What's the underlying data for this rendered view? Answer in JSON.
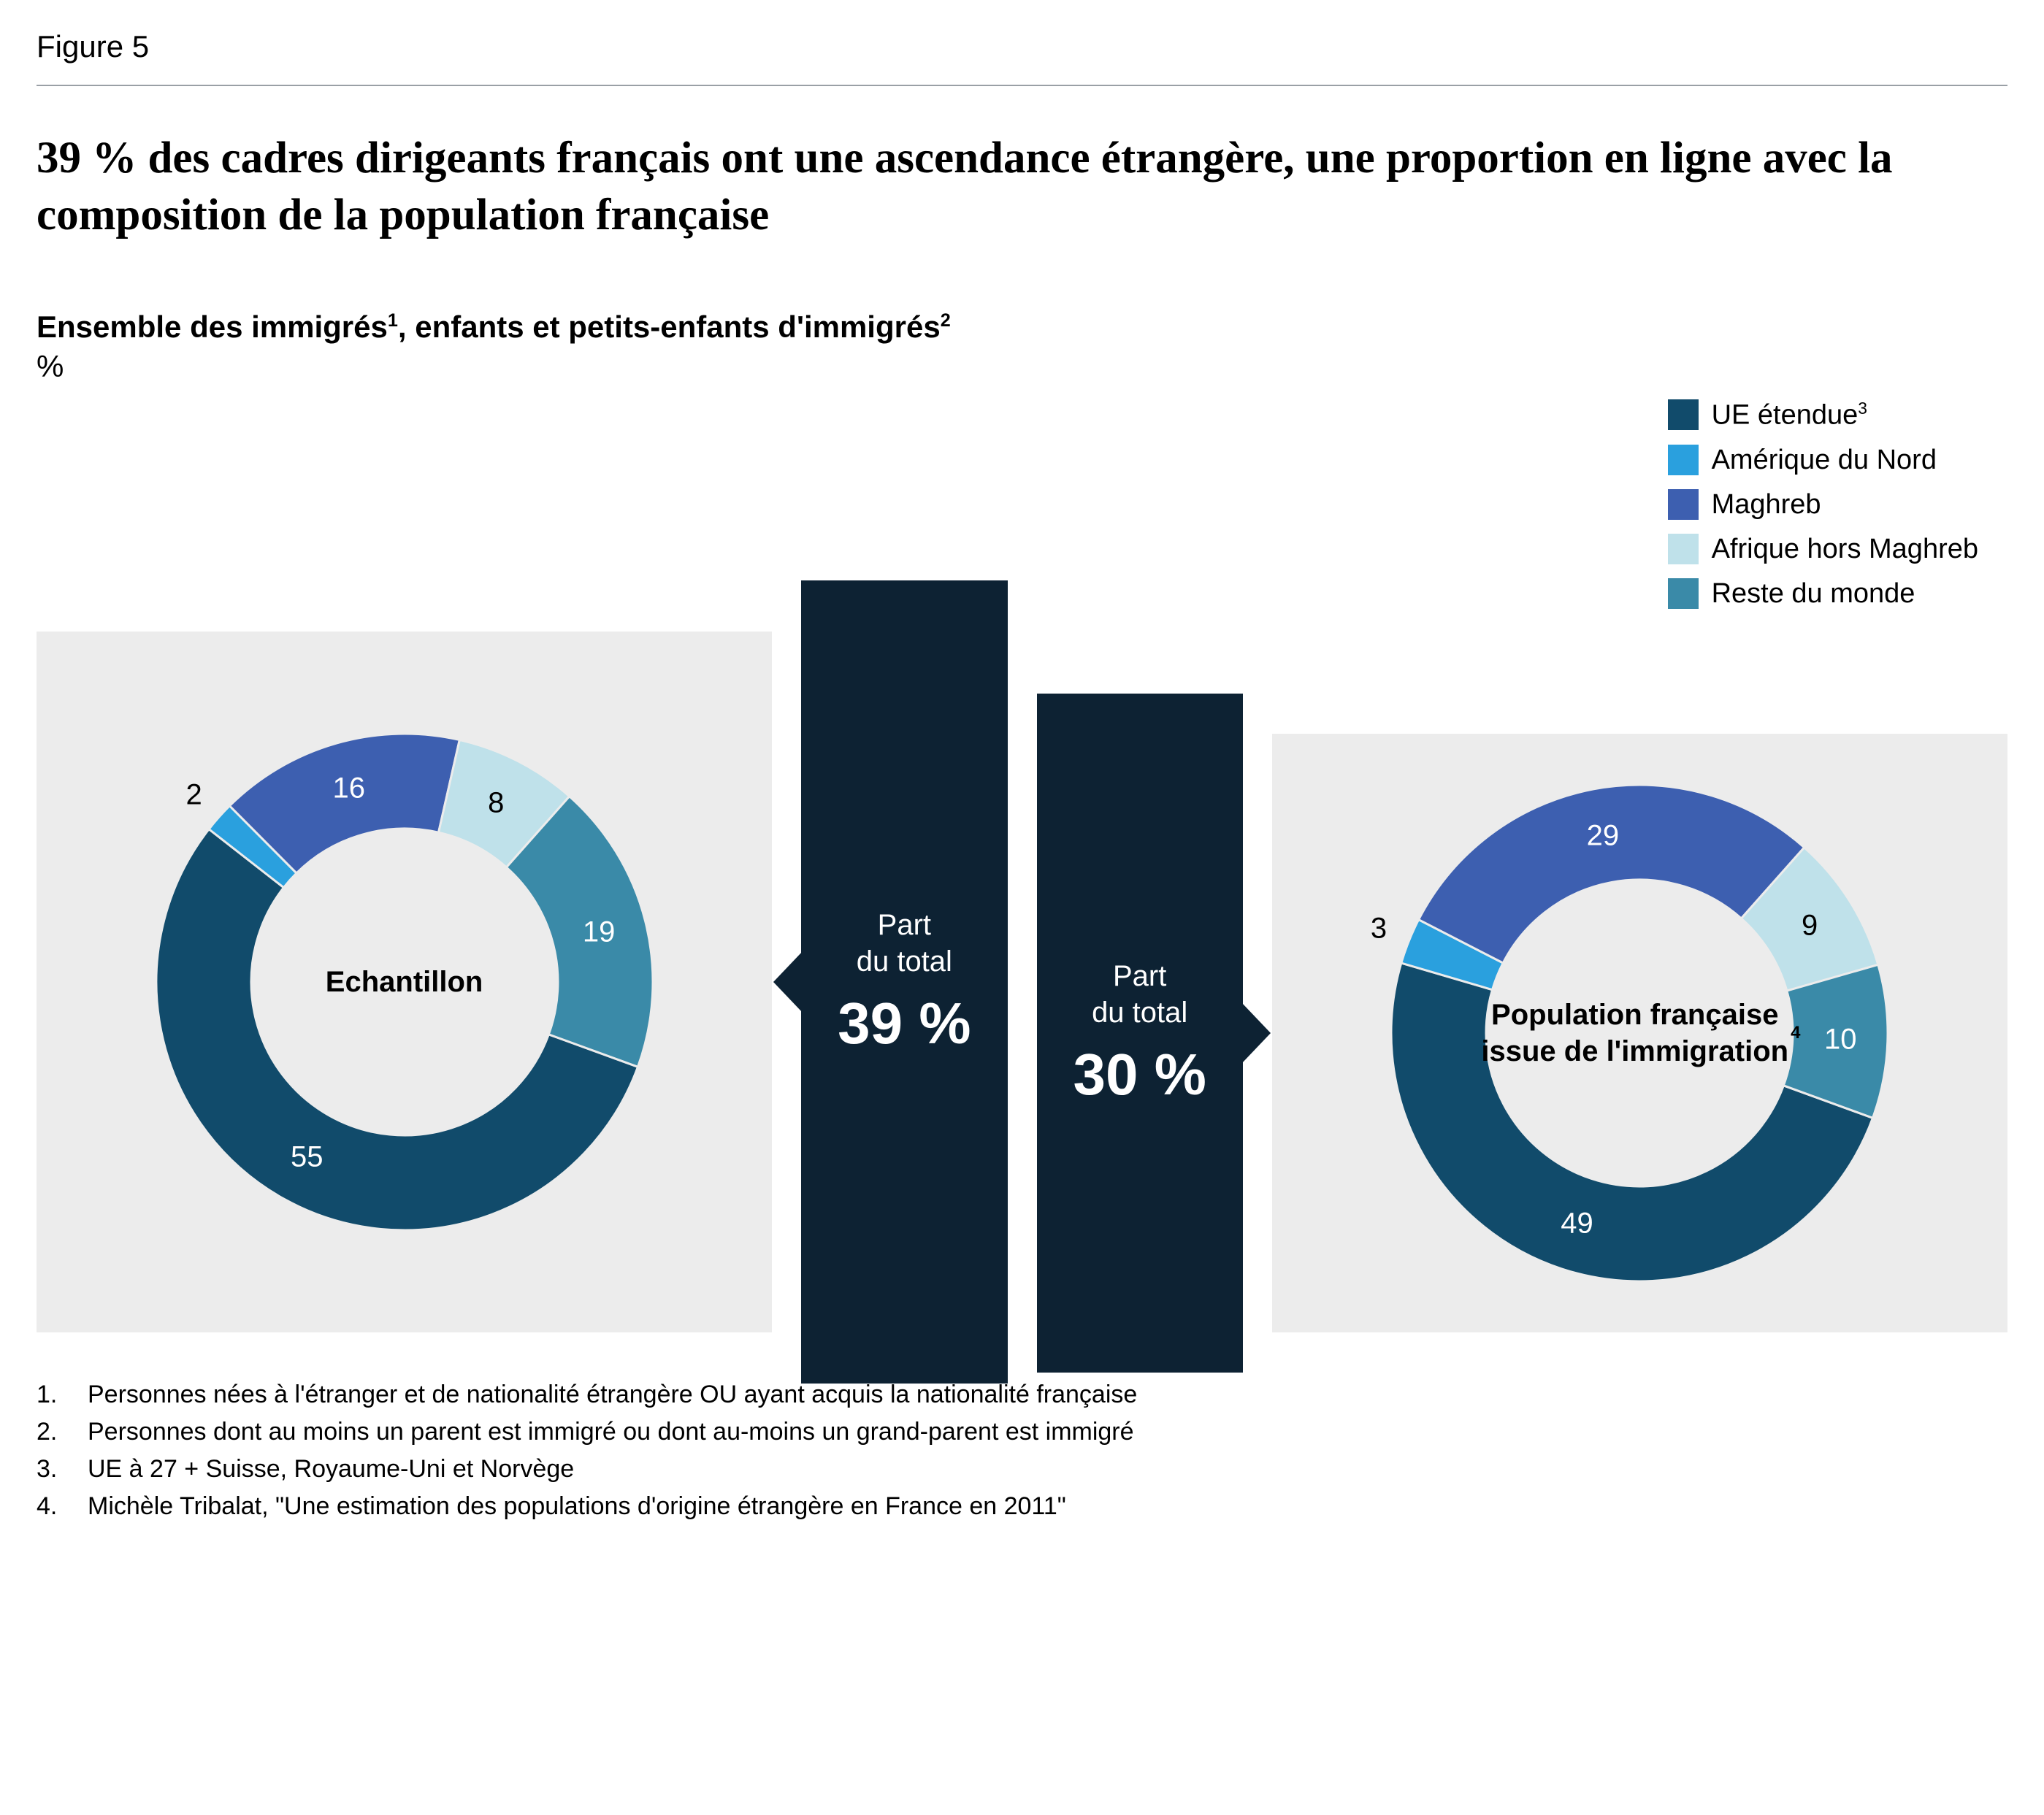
{
  "figure_label": "Figure 5",
  "headline": "39 % des cadres dirigeants français ont une ascendance étrangère, une proportion en ligne avec la composition de la population française",
  "subhead_html": "Ensemble des immigrés<sup>1</sup>, enfants et petits-enfants d'immigrés<sup>2</sup>",
  "unit": "%",
  "legend": {
    "items": [
      {
        "label_html": "UE étendue<sup>3</sup>",
        "color": "#114b6b"
      },
      {
        "label_html": "Amérique du Nord",
        "color": "#2aa0de"
      },
      {
        "label_html": "Maghreb",
        "color": "#3d5fb0"
      },
      {
        "label_html": "Afrique hors Maghreb",
        "color": "#bfe1ea"
      },
      {
        "label_html": "Reste du monde",
        "color": "#3a8aa8"
      }
    ]
  },
  "palette": {
    "panel_bg": "#ececec",
    "callout_bg": "#0d2233",
    "callout_text": "#ffffff",
    "rule": "#9aa0a6",
    "page_bg": "#ffffff"
  },
  "callouts": {
    "left": {
      "label": "Part\ndu total",
      "value": "39 %"
    },
    "right": {
      "label": "Part\ndu total",
      "value": "30 %"
    }
  },
  "charts": {
    "type": "donut-pair",
    "donut": {
      "outer_r": 340,
      "inner_r": 210,
      "svg_size": 760,
      "start_angle_deg": 20,
      "direction": "clockwise",
      "label_fontsize": 40,
      "label_color_outside": "#000000"
    },
    "left": {
      "center_label": "Echantillon",
      "slices": [
        {
          "key": "ue",
          "value": 55,
          "color": "#114b6b",
          "label_inside": true
        },
        {
          "key": "amnord",
          "value": 2,
          "color": "#2aa0de",
          "label_inside": false
        },
        {
          "key": "maghreb",
          "value": 16,
          "color": "#3d5fb0",
          "label_inside": true
        },
        {
          "key": "afrique",
          "value": 8,
          "color": "#bfe1ea",
          "label_inside": true,
          "text_color": "#000000"
        },
        {
          "key": "reste",
          "value": 19,
          "color": "#3a8aa8",
          "label_inside": true
        }
      ]
    },
    "right": {
      "center_label_html": "Population française issue de l'immigration<sup>4</sup>",
      "slices": [
        {
          "key": "ue",
          "value": 49,
          "color": "#114b6b",
          "label_inside": true
        },
        {
          "key": "amnord",
          "value": 3,
          "color": "#2aa0de",
          "label_inside": false
        },
        {
          "key": "maghreb",
          "value": 29,
          "color": "#3d5fb0",
          "label_inside": true
        },
        {
          "key": "afrique",
          "value": 9,
          "color": "#bfe1ea",
          "label_inside": true,
          "text_color": "#000000"
        },
        {
          "key": "reste",
          "value": 10,
          "color": "#3a8aa8",
          "label_inside": true
        }
      ]
    }
  },
  "footnotes": [
    "Personnes nées à l'étranger et de nationalité étrangère OU ayant acquis la nationalité française",
    "Personnes dont au moins un parent est immigré ou dont au-moins un grand-parent est immigré",
    "UE à 27 + Suisse, Royaume-Uni et Norvège",
    "Michèle Tribalat, \"Une estimation des populations d'origine étrangère en France en 2011\""
  ]
}
